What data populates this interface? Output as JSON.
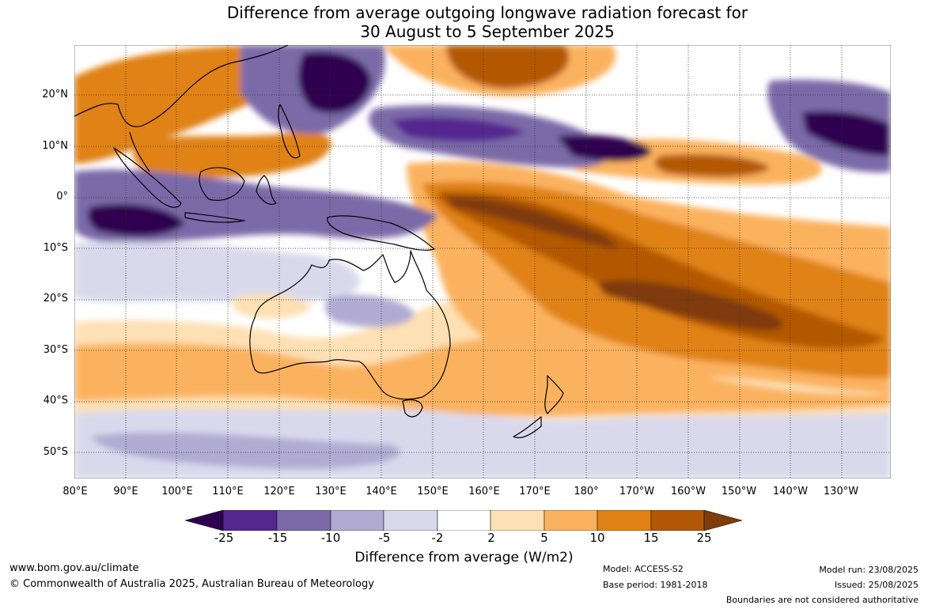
{
  "title": {
    "line1": "Difference from average outgoing longwave radiation forecast for",
    "line2": "30 August to 5 September 2025"
  },
  "map": {
    "lat_labels": [
      "20°N",
      "10°N",
      "0°",
      "10°S",
      "20°S",
      "30°S",
      "40°S",
      "50°S"
    ],
    "lon_labels": [
      "80°E",
      "90°E",
      "100°E",
      "110°E",
      "120°E",
      "130°E",
      "140°E",
      "150°E",
      "160°E",
      "170°E",
      "180°",
      "170°W",
      "160°W",
      "150°W",
      "140°W",
      "130°W"
    ]
  },
  "colorbar": {
    "ticks": [
      "-25",
      "-15",
      "-10",
      "-5",
      "-2",
      "2",
      "5",
      "10",
      "15",
      "25"
    ],
    "colors": [
      "#2d0050",
      "#54278f",
      "#7a6aa8",
      "#b1abd3",
      "#dad9ec",
      "#ffffff",
      "#fde0b4",
      "#fbb25f",
      "#e08214",
      "#b35806",
      "#7f3b08"
    ],
    "title": "Difference from average (W/m2)"
  },
  "footer": {
    "website": "www.bom.gov.au/climate",
    "copyright": "© Commonwealth of Australia 2025, Australian Bureau of Meteorology",
    "model": "Model: ACCESS-S2",
    "base_period": "Base period: 1981-2018",
    "model_run": "Model run: 23/08/2025",
    "issued": "Issued: 25/08/2025",
    "disclaimer": "Boundaries are not considered authoritative"
  }
}
